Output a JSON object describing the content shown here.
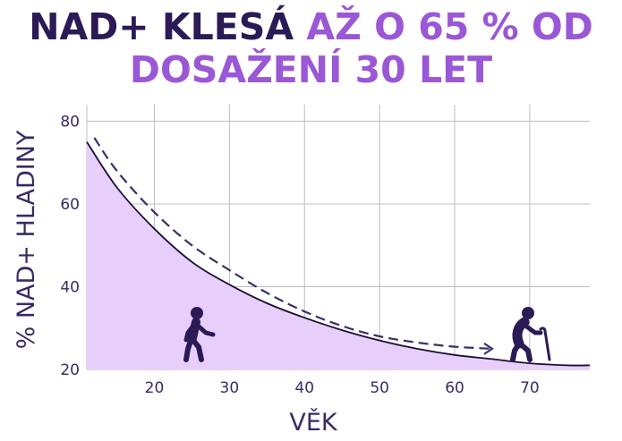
{
  "title": {
    "line1_dark": "NAD+ KLESÁ",
    "line1_light": "AŽ O 65 % OD",
    "line2_light": "DOSAŽENÍ 30 LET"
  },
  "chart_data": {
    "type": "area",
    "title": "NAD+ KLESÁ AŽ O 65 % OD DOSAŽENÍ 30 LET",
    "xlabel": "VĚK",
    "ylabel": "% NAD+ HLADINY",
    "xlim": [
      11,
      78
    ],
    "ylim": [
      20,
      84
    ],
    "xticks": [
      20,
      30,
      40,
      50,
      60,
      70
    ],
    "yticks": [
      20,
      40,
      60,
      80
    ],
    "grid": true,
    "series": [
      {
        "x": [
          11,
          15,
          20,
          25,
          30,
          35,
          40,
          45,
          50,
          55,
          60,
          65,
          70,
          75,
          78
        ],
        "values": [
          75,
          64,
          54,
          46,
          40.5,
          36,
          32.5,
          29.5,
          27,
          25,
          23.5,
          22.5,
          21.5,
          21,
          21
        ]
      }
    ],
    "trend_arrow": {
      "x": [
        12,
        15,
        20,
        25,
        30,
        35,
        40,
        45,
        50,
        55,
        60,
        65
      ],
      "values": [
        76,
        68,
        58,
        50,
        44,
        38.5,
        34,
        30.5,
        28,
        26.5,
        25.5,
        25
      ]
    },
    "colors": {
      "fill": "#e8cffb",
      "line": "#1a1033",
      "arrow": "#3d2d6b",
      "grid": "#bdbdbd"
    },
    "icons": [
      "walking-person-icon",
      "elderly-person-with-cane-icon"
    ]
  }
}
